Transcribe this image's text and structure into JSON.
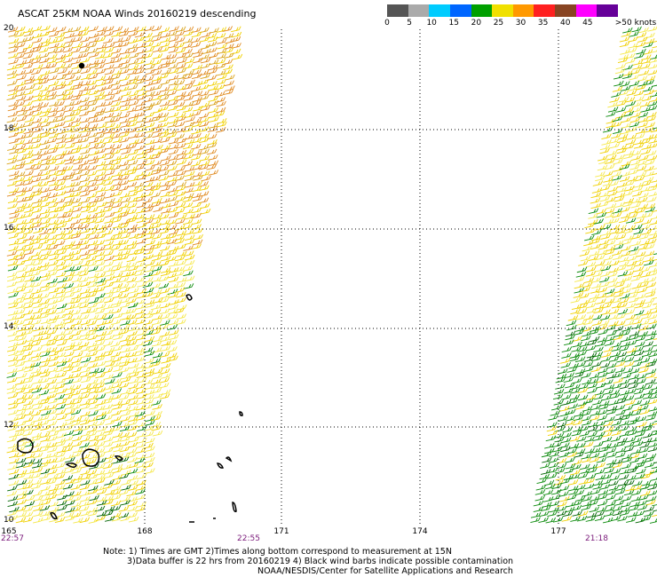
{
  "title": "ASCAT 25KM NOAA Winds 20160219 descending",
  "legend": {
    "labels": [
      "0",
      "5",
      "10",
      "15",
      "20",
      "25",
      "30",
      "35",
      "40",
      "45",
      ">50 knots"
    ],
    "colors": [
      "#555555",
      "#aaaaaa",
      "#00ccff",
      "#0066ff",
      "#00a000",
      "#f0e000",
      "#ff9900",
      "#ff2020",
      "#884422",
      "#ff00ff",
      "#660099"
    ]
  },
  "map": {
    "lat_ticks": [
      "20",
      "18",
      "16",
      "14",
      "12",
      "10"
    ],
    "lon_ticks": [
      "165",
      "168",
      "171",
      "174",
      "177"
    ],
    "times": {
      "left": "22:57",
      "middle": "22:55",
      "right": "21:18"
    },
    "wind_colors": {
      "orange": "#e08a20",
      "yellow": "#f0d000",
      "lightyellow": "#f5e84a",
      "green": "#0a8a0a",
      "darkgreen": "#006400"
    }
  },
  "notes": {
    "line1": "Note: 1) Times are GMT 2)Times along bottom correspond to measurement at 15N",
    "line2": "3)Data buffer is 22 hrs from 20160219 4) Black wind barbs indicate possible contamination",
    "line3": "NOAA/NESDIS/Center for Satellite Applications and Research"
  }
}
